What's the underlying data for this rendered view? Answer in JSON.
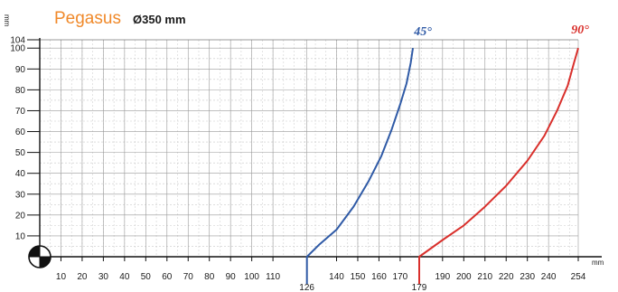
{
  "header": {
    "brand": "Pegasus",
    "subtitle": "Ø350 mm"
  },
  "colors": {
    "brand": "#f0892a",
    "series_45": "#2f5aa6",
    "series_90": "#d9302c",
    "grid": "#9a9a9a",
    "axis": "#111111"
  },
  "icons": {
    "corner": "quarter-circle-target-icon"
  },
  "chart_data": {
    "type": "line",
    "title": "Ø350 mm",
    "xlabel": "mm",
    "ylabel": "mm",
    "xlim": [
      0,
      254
    ],
    "ylim": [
      0,
      104
    ],
    "grid": true,
    "x_ticks": [
      10,
      20,
      30,
      40,
      50,
      60,
      70,
      80,
      90,
      100,
      110,
      126,
      140,
      150,
      160,
      170,
      179,
      190,
      200,
      210,
      220,
      230,
      240,
      254
    ],
    "y_ticks": [
      10,
      20,
      30,
      40,
      50,
      60,
      70,
      80,
      90,
      100,
      104
    ],
    "series": [
      {
        "name": "45°",
        "color": "#2f5aa6",
        "x": [
          126,
          126,
          132,
          140,
          148,
          155,
          161,
          166,
          170,
          173,
          175,
          176
        ],
        "y": [
          -15,
          0,
          6,
          13,
          24,
          36,
          48,
          61,
          73,
          83,
          93,
          100
        ]
      },
      {
        "name": "90°",
        "color": "#d9302c",
        "x": [
          179,
          179,
          190,
          200,
          210,
          220,
          230,
          238,
          244,
          249,
          252,
          254
        ],
        "y": [
          -15,
          0,
          8,
          15,
          24,
          34,
          46,
          58,
          70,
          82,
          93,
          100
        ]
      }
    ]
  }
}
